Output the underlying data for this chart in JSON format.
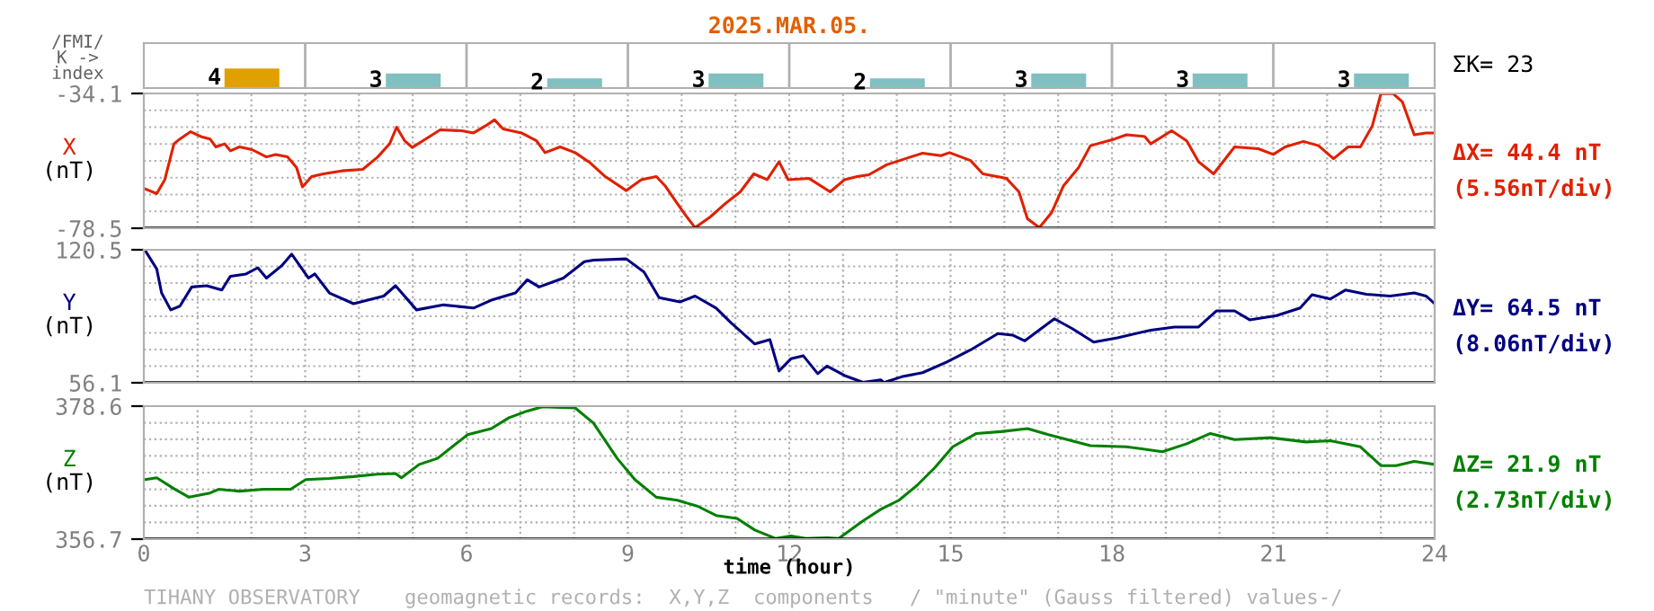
{
  "chart_data": [
    {
      "type": "bar",
      "title": "2025.MAR.05.",
      "ylabel": "/FMI/\nK ->\nindex",
      "categories": [
        null,
        null,
        null,
        null,
        null,
        null,
        null,
        null
      ],
      "values": [
        4,
        3,
        2,
        3,
        2,
        3,
        3,
        3
      ],
      "colors": [
        "#e0a000",
        "#80c0c0",
        "#80c0c0",
        "#80c0c0",
        "#80c0c0",
        "#80c0c0",
        "#80c0c0",
        "#80c0c0"
      ],
      "data_labels": true,
      "tick_labels": false,
      "annotations": [
        "ΣK= 23"
      ]
    },
    {
      "type": "line",
      "ylabel": "X",
      "xlim": [
        0,
        24
      ],
      "xticks": [
        {
          "value": 0,
          "label": null
        },
        {
          "value": 1,
          "label": null
        },
        {
          "value": 2,
          "label": null
        },
        {
          "value": 3,
          "label": null
        },
        {
          "value": 4,
          "label": null
        },
        {
          "value": 5,
          "label": null
        },
        {
          "value": 6,
          "label": null
        },
        {
          "value": 7,
          "label": null
        },
        {
          "value": 8,
          "label": null
        },
        {
          "value": 9,
          "label": null
        },
        {
          "value": 10,
          "label": null
        },
        {
          "value": 11,
          "label": null
        },
        {
          "value": 12,
          "label": null
        },
        {
          "value": 13,
          "label": null
        },
        {
          "value": 14,
          "label": null
        },
        {
          "value": 15,
          "label": null
        },
        {
          "value": 16,
          "label": null
        },
        {
          "value": 17,
          "label": null
        },
        {
          "value": 18,
          "label": null
        },
        {
          "value": 19,
          "label": null
        },
        {
          "value": 20,
          "label": null
        },
        {
          "value": 21,
          "label": null
        },
        {
          "value": 22,
          "label": null
        },
        {
          "value": 23,
          "label": null
        },
        {
          "value": 24,
          "label": null
        }
      ],
      "ylim": [
        -78.5,
        -34.1
      ],
      "yticks": [
        {
          "value": -78.5,
          "label": "-78.5"
        },
        {
          "value": -72.95,
          "label": null
        },
        {
          "value": -67.4,
          "label": null
        },
        {
          "value": -61.85,
          "label": null
        },
        {
          "value": -56.3,
          "label": null
        },
        {
          "value": -50.75,
          "label": null
        },
        {
          "value": -45.2,
          "label": null
        },
        {
          "value": -39.65,
          "label": null
        },
        {
          "value": -34.1,
          "label": "-34.1"
        }
      ],
      "grid": true,
      "tick_labels": "y",
      "annotations": [
        "(nT)",
        "ΔX= 44.4 nT",
        "(5.56nT/div)"
      ],
      "series": [
        {
          "color": "#e02000",
          "x": [
            0.02,
            0.24,
            0.39,
            0.56,
            0.67,
            0.87,
            1.06,
            1.23,
            1.34,
            1.5,
            1.61,
            1.78,
            2.01,
            2.28,
            2.45,
            2.67,
            2.84,
            2.95,
            3.12,
            3.34,
            3.68,
            4.07,
            4.35,
            4.57,
            4.7,
            4.85,
            4.99,
            5.24,
            5.51,
            5.91,
            6.13,
            6.35,
            6.52,
            6.68,
            7.02,
            7.3,
            7.46,
            7.74,
            8.02,
            8.3,
            8.58,
            8.97,
            9.25,
            9.53,
            9.69,
            9.92,
            10.08,
            10.25,
            10.53,
            10.81,
            11.09,
            11.34,
            11.59,
            11.81,
            11.98,
            12.37,
            12.76,
            13.03,
            13.26,
            13.48,
            13.81,
            14.26,
            14.48,
            14.82,
            14.98,
            15.37,
            15.6,
            16.04,
            16.27,
            16.43,
            16.65,
            16.88,
            17.1,
            17.38,
            17.6,
            18.05,
            18.27,
            18.61,
            18.72,
            19.11,
            19.39,
            19.61,
            19.89,
            20.28,
            20.72,
            21.0,
            21.22,
            21.56,
            21.84,
            22.12,
            22.39,
            22.62,
            22.84,
            23.0,
            23.23,
            23.4,
            23.62,
            23.84,
            24.0
          ],
          "values": [
            -65.5,
            -67.1,
            -62.5,
            -50.7,
            -49.1,
            -46.7,
            -48.3,
            -49.1,
            -51.7,
            -50.7,
            -53.0,
            -51.7,
            -52.6,
            -55.0,
            -54.2,
            -55.0,
            -58.5,
            -64.9,
            -61.5,
            -60.6,
            -59.6,
            -59.1,
            -55.0,
            -50.7,
            -45.2,
            -49.7,
            -51.9,
            -49.1,
            -46.1,
            -46.4,
            -47.1,
            -44.8,
            -42.8,
            -45.8,
            -47.1,
            -49.7,
            -53.6,
            -51.7,
            -53.6,
            -57.0,
            -61.5,
            -66.1,
            -62.5,
            -61.5,
            -64.5,
            -70.4,
            -74.4,
            -78.3,
            -74.8,
            -70.4,
            -66.5,
            -60.6,
            -62.5,
            -56.6,
            -62.5,
            -62.1,
            -66.5,
            -62.5,
            -61.5,
            -60.9,
            -57.6,
            -55.0,
            -53.8,
            -54.6,
            -53.6,
            -56.2,
            -60.6,
            -62.1,
            -66.5,
            -75.4,
            -78.3,
            -73.3,
            -64.5,
            -58.5,
            -51.3,
            -49.1,
            -47.7,
            -48.3,
            -50.7,
            -46.4,
            -49.7,
            -56.6,
            -60.6,
            -51.7,
            -52.3,
            -54.2,
            -51.7,
            -49.9,
            -51.3,
            -55.6,
            -51.7,
            -51.7,
            -44.8,
            -34.2,
            -34.2,
            -36.9,
            -47.7,
            -47.1,
            -47.1
          ]
        }
      ]
    },
    {
      "type": "line",
      "ylabel": "Y",
      "xlim": [
        0,
        24
      ],
      "xticks": [
        {
          "value": 0,
          "label": null
        },
        {
          "value": 1,
          "label": null
        },
        {
          "value": 2,
          "label": null
        },
        {
          "value": 3,
          "label": null
        },
        {
          "value": 4,
          "label": null
        },
        {
          "value": 5,
          "label": null
        },
        {
          "value": 6,
          "label": null
        },
        {
          "value": 7,
          "label": null
        },
        {
          "value": 8,
          "label": null
        },
        {
          "value": 9,
          "label": null
        },
        {
          "value": 10,
          "label": null
        },
        {
          "value": 11,
          "label": null
        },
        {
          "value": 12,
          "label": null
        },
        {
          "value": 13,
          "label": null
        },
        {
          "value": 14,
          "label": null
        },
        {
          "value": 15,
          "label": null
        },
        {
          "value": 16,
          "label": null
        },
        {
          "value": 17,
          "label": null
        },
        {
          "value": 18,
          "label": null
        },
        {
          "value": 19,
          "label": null
        },
        {
          "value": 20,
          "label": null
        },
        {
          "value": 21,
          "label": null
        },
        {
          "value": 22,
          "label": null
        },
        {
          "value": 23,
          "label": null
        },
        {
          "value": 24,
          "label": null
        }
      ],
      "ylim": [
        56.1,
        120.5
      ],
      "yticks": [
        {
          "value": 56.1,
          "label": "56.1"
        },
        {
          "value": 64.15,
          "label": null
        },
        {
          "value": 72.2,
          "label": null
        },
        {
          "value": 80.25,
          "label": null
        },
        {
          "value": 88.3,
          "label": null
        },
        {
          "value": 96.35,
          "label": null
        },
        {
          "value": 104.4,
          "label": null
        },
        {
          "value": 112.45,
          "label": null
        },
        {
          "value": 120.5,
          "label": "120.5"
        }
      ],
      "grid": true,
      "tick_labels": "y",
      "annotations": [
        "(nT)",
        "ΔY= 64.5 nT",
        "(8.06nT/div)"
      ],
      "series": [
        {
          "color": "#000080",
          "x": [
            0.02,
            0.24,
            0.33,
            0.5,
            0.67,
            0.89,
            1.17,
            1.45,
            1.61,
            1.9,
            2.12,
            2.28,
            2.56,
            2.75,
            3.06,
            3.18,
            3.45,
            3.9,
            4.46,
            4.68,
            5.07,
            5.57,
            6.13,
            6.46,
            6.91,
            7.13,
            7.35,
            7.8,
            8.19,
            8.36,
            8.97,
            9.3,
            9.58,
            9.97,
            10.25,
            10.64,
            10.92,
            11.36,
            11.64,
            11.81,
            12.03,
            12.26,
            12.53,
            12.7,
            13.03,
            13.37,
            13.7,
            13.76,
            14.09,
            14.48,
            14.93,
            15.37,
            15.88,
            16.15,
            16.38,
            16.93,
            17.27,
            17.66,
            18.1,
            18.72,
            19.16,
            19.61,
            19.94,
            20.28,
            20.56,
            21.06,
            21.5,
            21.72,
            22.06,
            22.34,
            22.73,
            23.17,
            23.62,
            23.84,
            24.0
          ],
          "values": [
            120.4,
            111.2,
            99.6,
            91.4,
            93.2,
            102.5,
            103.1,
            101.0,
            107.7,
            108.8,
            111.8,
            106.8,
            112.7,
            118.4,
            106.8,
            108.8,
            99.6,
            94.4,
            98.1,
            103.1,
            91.4,
            93.8,
            92.3,
            96.1,
            99.6,
            106.0,
            102.5,
            106.8,
            114.7,
            115.5,
            116.1,
            109.7,
            97.3,
            95.3,
            98.1,
            92.3,
            85.1,
            74.9,
            77.0,
            61.8,
            67.7,
            69.2,
            60.5,
            64.2,
            59.6,
            56.3,
            57.5,
            56.2,
            59.0,
            61.0,
            66.2,
            72.0,
            79.9,
            79.2,
            76.4,
            87.1,
            82.2,
            75.8,
            77.9,
            81.6,
            83.1,
            83.1,
            90.9,
            90.9,
            86.6,
            88.6,
            92.3,
            98.7,
            96.7,
            101.0,
            99.0,
            98.1,
            99.6,
            98.1,
            94.4
          ]
        }
      ]
    },
    {
      "type": "line",
      "ylabel": "Z",
      "xlabel": "time (hour)",
      "xlim": [
        0,
        24
      ],
      "xticks": [
        0,
        {
          "value": 1,
          "label": null
        },
        {
          "value": 2,
          "label": null
        },
        3,
        {
          "value": 4,
          "label": null
        },
        {
          "value": 5,
          "label": null
        },
        6,
        {
          "value": 7,
          "label": null
        },
        {
          "value": 8,
          "label": null
        },
        9,
        {
          "value": 10,
          "label": null
        },
        {
          "value": 11,
          "label": null
        },
        12,
        {
          "value": 13,
          "label": null
        },
        {
          "value": 14,
          "label": null
        },
        15,
        {
          "value": 16,
          "label": null
        },
        {
          "value": 17,
          "label": null
        },
        18,
        {
          "value": 19,
          "label": null
        },
        {
          "value": 20,
          "label": null
        },
        21,
        {
          "value": 22,
          "label": null
        },
        {
          "value": 23,
          "label": null
        },
        24
      ],
      "ylim": [
        356.7,
        378.6
      ],
      "yticks": [
        {
          "value": 356.7,
          "label": "356.7"
        },
        {
          "value": 359.44,
          "label": null
        },
        {
          "value": 362.18,
          "label": null
        },
        {
          "value": 364.91,
          "label": null
        },
        {
          "value": 367.65,
          "label": null
        },
        {
          "value": 370.39,
          "label": null
        },
        {
          "value": 373.13,
          "label": null
        },
        {
          "value": 375.86,
          "label": null
        },
        {
          "value": 378.6,
          "label": "378.6"
        }
      ],
      "grid": true,
      "annotations": [
        "(nT)",
        "ΔZ= 21.9 nT",
        "(2.73nT/div)",
        "TIHANY OBSERVATORY",
        "geomagnetic records:  X,Y,Z  components   / \"minute\" (Gauss filtered) values-/"
      ],
      "series": [
        {
          "color": "#008000",
          "x": [
            0.02,
            0.24,
            0.56,
            0.84,
            1.23,
            1.39,
            1.78,
            2.23,
            2.73,
            3.01,
            3.45,
            3.9,
            4.34,
            4.68,
            4.79,
            5.12,
            5.46,
            6.02,
            6.46,
            6.79,
            7.13,
            7.41,
            7.74,
            8.02,
            8.36,
            8.8,
            9.13,
            9.53,
            9.92,
            10.3,
            10.64,
            11.03,
            11.36,
            11.75,
            12.03,
            12.31,
            12.7,
            12.92,
            13.37,
            13.7,
            14.04,
            14.37,
            14.71,
            15.04,
            15.48,
            15.93,
            16.43,
            16.82,
            17.6,
            18.27,
            18.94,
            19.39,
            19.83,
            20.28,
            20.95,
            21.61,
            22.06,
            22.62,
            23.0,
            23.28,
            23.62,
            24.0
          ],
          "values": [
            366.5,
            366.8,
            365.0,
            363.6,
            364.3,
            364.9,
            364.6,
            364.9,
            364.9,
            366.5,
            366.7,
            367.0,
            367.4,
            367.5,
            366.8,
            369.0,
            370.0,
            373.9,
            374.9,
            376.7,
            377.8,
            378.5,
            378.4,
            378.3,
            375.8,
            370.0,
            366.5,
            363.6,
            363.1,
            362.1,
            360.6,
            360.1,
            358.2,
            356.8,
            357.2,
            356.8,
            356.9,
            356.8,
            359.7,
            361.6,
            363.1,
            365.5,
            368.5,
            371.9,
            374.1,
            374.4,
            374.9,
            373.9,
            372.1,
            371.9,
            371.1,
            372.4,
            374.1,
            373.1,
            373.4,
            372.7,
            372.9,
            371.9,
            368.8,
            368.8,
            369.5,
            369.0
          ]
        }
      ]
    }
  ]
}
